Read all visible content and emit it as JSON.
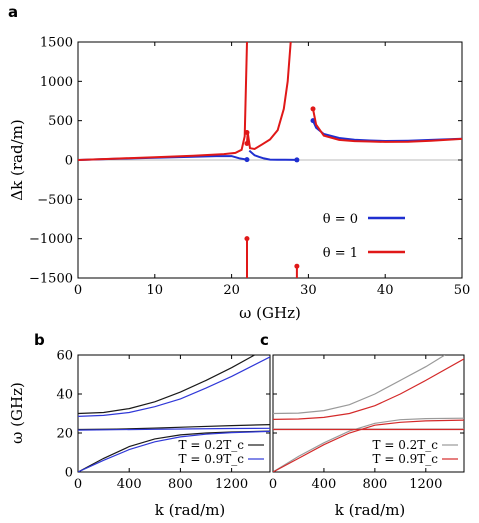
{
  "chart_data": [
    {
      "panel": "a",
      "type": "line",
      "xlabel": "ω (GHz)",
      "ylabel": "Δk (rad/m)",
      "xlim": [
        0,
        50
      ],
      "ylim": [
        -1500,
        1500
      ],
      "xticks": [
        0,
        10,
        20,
        30,
        40,
        50
      ],
      "yticks": [
        -1500,
        -1000,
        -500,
        0,
        500,
        1000,
        1500
      ],
      "grid": false,
      "legend_position": "bottom-right",
      "series": [
        {
          "name": "θ = 0",
          "color": "#1f2fd0",
          "segments": [
            [
              [
                0,
                0
              ],
              [
                5,
                15
              ],
              [
                10,
                28
              ],
              [
                15,
                42
              ],
              [
                18,
                50
              ],
              [
                20,
                50
              ],
              [
                21,
                22
              ],
              [
                22,
                5
              ]
            ],
            [
              [
                22.3,
                120
              ],
              [
                23,
                60
              ],
              [
                23.6,
                40
              ],
              [
                24.2,
                20
              ],
              [
                25,
                5
              ],
              [
                26,
                3
              ],
              [
                27,
                2
              ],
              [
                28.5,
                1
              ]
            ],
            [
              [
                30.6,
                500
              ],
              [
                31,
                410
              ],
              [
                32,
                330
              ],
              [
                34,
                280
              ],
              [
                36,
                258
              ],
              [
                38,
                248
              ],
              [
                40,
                242
              ],
              [
                43,
                245
              ],
              [
                46,
                255
              ],
              [
                50,
                270
              ]
            ]
          ],
          "markers": [
            [
              22,
              5
            ],
            [
              28.5,
              1
            ],
            [
              30.6,
              500
            ]
          ]
        },
        {
          "name": "θ = 1",
          "color": "#e01818",
          "segments": [
            [
              [
                0,
                0
              ],
              [
                5,
                18
              ],
              [
                10,
                35
              ],
              [
                15,
                55
              ],
              [
                19,
                75
              ],
              [
                20.5,
                90
              ],
              [
                21.3,
                130
              ],
              [
                21.7,
                300
              ],
              [
                22,
                1500
              ]
            ],
            [
              [
                22,
                -1500
              ],
              [
                22,
                -1000
              ]
            ],
            [
              [
                22,
                210
              ],
              [
                22.1,
                350
              ],
              [
                22.4,
                150
              ],
              [
                23,
                140
              ],
              [
                24,
                200
              ],
              [
                25,
                260
              ],
              [
                26,
                380
              ],
              [
                26.8,
                650
              ],
              [
                27.3,
                1000
              ],
              [
                27.7,
                1500
              ]
            ],
            [
              [
                28.5,
                -1500
              ],
              [
                28.5,
                -1350
              ]
            ],
            [
              [
                30.6,
                650
              ],
              [
                31,
                450
              ],
              [
                32,
                310
              ],
              [
                34,
                255
              ],
              [
                36,
                240
              ],
              [
                38,
                235
              ],
              [
                40,
                230
              ],
              [
                43,
                232
              ],
              [
                46,
                245
              ],
              [
                50,
                268
              ]
            ]
          ],
          "markers": [
            [
              22,
              -1000
            ],
            [
              22,
              210
            ],
            [
              22,
              350
            ],
            [
              28.5,
              -1350
            ],
            [
              30.6,
              650
            ]
          ]
        }
      ]
    },
    {
      "panel": "b",
      "type": "line",
      "xlabel": "k (rad/m)",
      "ylabel": "ω (GHz)",
      "xlim": [
        0,
        1500
      ],
      "ylim": [
        0,
        60
      ],
      "xticks": [
        0,
        400,
        800,
        1200
      ],
      "yticks": [
        0,
        20,
        40,
        60
      ],
      "legend_position": "bottom-right",
      "series": [
        {
          "name": "T = 0.2T_c",
          "color": "#1a1a1a",
          "curves": [
            [
              [
                0,
                0
              ],
              [
                200,
                7
              ],
              [
                400,
                13
              ],
              [
                600,
                17
              ],
              [
                800,
                19
              ],
              [
                1000,
                20
              ],
              [
                1200,
                20.5
              ],
              [
                1500,
                21
              ]
            ],
            [
              [
                0,
                21.8
              ],
              [
                300,
                22
              ],
              [
                600,
                22.5
              ],
              [
                900,
                23.2
              ],
              [
                1200,
                23.8
              ],
              [
                1500,
                24.3
              ]
            ],
            [
              [
                0,
                30
              ],
              [
                200,
                30.5
              ],
              [
                400,
                32.5
              ],
              [
                600,
                36
              ],
              [
                800,
                41
              ],
              [
                1000,
                47
              ],
              [
                1200,
                53.5
              ],
              [
                1380,
                60
              ]
            ]
          ]
        },
        {
          "name": "T = 0.9T_c",
          "color": "#3038d8",
          "curves": [
            [
              [
                0,
                0
              ],
              [
                200,
                6
              ],
              [
                400,
                11.5
              ],
              [
                600,
                15.5
              ],
              [
                800,
                18
              ],
              [
                1000,
                19.4
              ],
              [
                1200,
                20.2
              ],
              [
                1500,
                20.8
              ]
            ],
            [
              [
                0,
                21.5
              ],
              [
                300,
                21.7
              ],
              [
                600,
                21.9
              ],
              [
                900,
                22.1
              ],
              [
                1200,
                22.3
              ],
              [
                1500,
                22.4
              ]
            ],
            [
              [
                0,
                28.5
              ],
              [
                200,
                29
              ],
              [
                400,
                30.5
              ],
              [
                600,
                33.5
              ],
              [
                800,
                37.5
              ],
              [
                1000,
                43
              ],
              [
                1200,
                49
              ],
              [
                1500,
                59
              ]
            ]
          ]
        }
      ]
    },
    {
      "panel": "c",
      "type": "line",
      "xlabel": "k (rad/m)",
      "ylabel": "",
      "xlim": [
        0,
        1500
      ],
      "ylim": [
        0,
        60
      ],
      "xticks": [
        0,
        400,
        800,
        1200
      ],
      "yticks": [
        0,
        20,
        40,
        60
      ],
      "legend_position": "bottom-right",
      "series": [
        {
          "name": "T = 0.2T_c",
          "color": "#9a9a9a",
          "curves": [
            [
              [
                0,
                0
              ],
              [
                200,
                8
              ],
              [
                400,
                15
              ],
              [
                600,
                21
              ],
              [
                800,
                25
              ],
              [
                1000,
                26.8
              ],
              [
                1200,
                27.4
              ],
              [
                1500,
                27.6
              ]
            ],
            [
              [
                0,
                22
              ],
              [
                1500,
                22
              ]
            ],
            [
              [
                0,
                30
              ],
              [
                200,
                30.2
              ],
              [
                400,
                31.5
              ],
              [
                600,
                34.5
              ],
              [
                800,
                40
              ],
              [
                1000,
                47
              ],
              [
                1200,
                54
              ],
              [
                1350,
                60
              ]
            ]
          ]
        },
        {
          "name": "T = 0.9T_c",
          "color": "#d42a2a",
          "curves": [
            [
              [
                0,
                0
              ],
              [
                200,
                7
              ],
              [
                400,
                14
              ],
              [
                600,
                20
              ],
              [
                800,
                24
              ],
              [
                1000,
                25.5
              ],
              [
                1200,
                26.2
              ],
              [
                1500,
                26.6
              ]
            ],
            [
              [
                0,
                21.8
              ],
              [
                1500,
                21.8
              ]
            ],
            [
              [
                0,
                27
              ],
              [
                200,
                27.2
              ],
              [
                400,
                28
              ],
              [
                600,
                30
              ],
              [
                800,
                34
              ],
              [
                1000,
                40
              ],
              [
                1200,
                47
              ],
              [
                1500,
                58
              ]
            ]
          ]
        }
      ]
    }
  ],
  "labels": {
    "panel_a": "a",
    "panel_b": "b",
    "panel_c": "c"
  }
}
